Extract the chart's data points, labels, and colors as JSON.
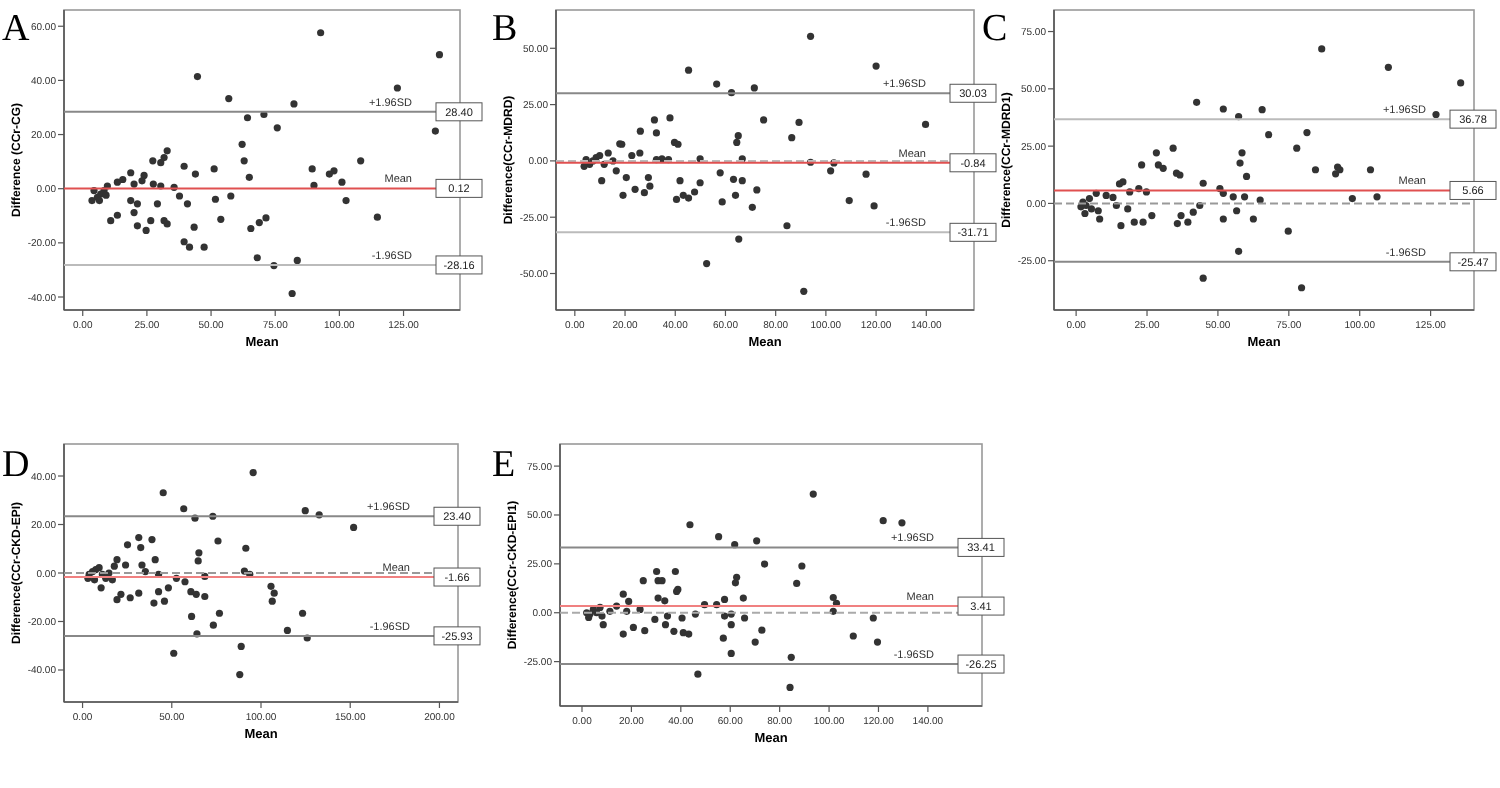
{
  "chart_data": [
    {
      "type": "scatter",
      "title": "A",
      "annotations": [
        {
          "text": "28.40",
          "y": 28.4
        },
        {
          "text": "0.12",
          "y": 0.12
        },
        {
          "text": "-28.16",
          "y": -28.16
        }
      ],
      "xlabel": "Mean",
      "ylabel": "Difference (CCr-CG)",
      "marker": "circle",
      "xlim": [
        -7.3,
        147
      ],
      "ylim": [
        -44.8,
        66
      ],
      "xticks": [
        {
          "value": 0,
          "label": "0.00"
        },
        {
          "value": 25,
          "label": "25.00"
        },
        {
          "value": 50,
          "label": "50.00"
        },
        {
          "value": 75,
          "label": "75.00"
        },
        {
          "value": 100,
          "label": "100.00"
        },
        {
          "value": 125,
          "label": "125.00"
        }
      ],
      "yticks": [
        {
          "value": -40,
          "label": "-40.00"
        },
        {
          "value": -20,
          "label": "-20.00"
        },
        {
          "value": 0,
          "label": "0.00"
        },
        {
          "value": 20,
          "label": "20.00"
        },
        {
          "value": 40,
          "label": "40.00"
        },
        {
          "value": 60,
          "label": "60.00"
        }
      ],
      "ref_lines": [
        {
          "axis": "y",
          "value": 28.4,
          "label": "+1.96SD",
          "color": "#888888",
          "line_style": "solid"
        },
        {
          "axis": "y",
          "value": 0.12,
          "label": "Mean",
          "color": "#e05050",
          "line_style": "solid"
        },
        {
          "axis": "y",
          "value": -28.16,
          "label": "-1.96SD",
          "color": "#bbbbbb",
          "line_style": "solid"
        }
      ],
      "series": [
        {
          "color": "#333333",
          "x": [
            92.7,
            139,
            122.6,
            44.7,
            56.9,
            82.3,
            137.4,
            64.2,
            70.6,
            75.8,
            62.1,
            62.9,
            64.9,
            51.2,
            32.9,
            30.4,
            27.3,
            31.7,
            39.5,
            43.9,
            108.3,
            97.9,
            96.1,
            89.4,
            101,
            90.1,
            102.6,
            114.8,
            57.7,
            51.7,
            53.8,
            65.5,
            68.8,
            71.4,
            68,
            74.5,
            83.6,
            81.6,
            39.5,
            41.6,
            47.3,
            43.4,
            40.8,
            37.7,
            32.9,
            31.7,
            26.5,
            29.1,
            24.7,
            21.3,
            21.3,
            20,
            18.7,
            13.5,
            10.9,
            20,
            18.7,
            23.9,
            23.1,
            13.5,
            15.6,
            9.6,
            8.3,
            7,
            5.7,
            4.4,
            3.6,
            6.5,
            9.1,
            35.6,
            30.4,
            27.5
          ],
          "values": [
            57.6,
            49.5,
            37.2,
            41.4,
            33.3,
            31.3,
            21.3,
            26.2,
            27.4,
            22.5,
            16.4,
            10.3,
            4.2,
            7.3,
            14,
            9.6,
            10.3,
            11.5,
            8.3,
            5.4,
            10.3,
            6.6,
            5.4,
            7.3,
            2.4,
            1.2,
            -4.4,
            -10.5,
            -2.7,
            -3.9,
            -11.3,
            -14.7,
            -12.5,
            -10.8,
            -25.5,
            -28.4,
            -26.5,
            -38.7,
            -19.6,
            -21.6,
            -21.6,
            -14.2,
            -5.6,
            -2.7,
            -13,
            -11.8,
            -11.8,
            -5.6,
            -15.4,
            -13.7,
            -5.6,
            -8.8,
            -4.4,
            -9.8,
            -11.8,
            1.7,
            5.9,
            4.9,
            2.9,
            2.4,
            3.4,
            1,
            -0.7,
            -2,
            -3.2,
            -0.7,
            -4.4,
            -4.4,
            -2.4,
            0.5,
            1,
            1.7
          ]
        }
      ]
    },
    {
      "type": "scatter",
      "title": "B",
      "annotations": [
        {
          "text": "30.03",
          "y": 30.03
        },
        {
          "text": "-0.84",
          "y": -0.84
        },
        {
          "text": "-31.71",
          "y": -31.71
        }
      ],
      "xlabel": "Mean",
      "ylabel": "Difference(CCr-MDRD)",
      "marker": "circle",
      "xlim": [
        -7.5,
        159
      ],
      "ylim": [
        -66.2,
        67
      ],
      "xticks": [
        {
          "value": 0,
          "label": "0.00"
        },
        {
          "value": 20,
          "label": "20.00"
        },
        {
          "value": 40,
          "label": "40.00"
        },
        {
          "value": 60,
          "label": "60.00"
        },
        {
          "value": 80,
          "label": "80.00"
        },
        {
          "value": 100,
          "label": "100.00"
        },
        {
          "value": 120,
          "label": "120.00"
        },
        {
          "value": 140,
          "label": "140.00"
        }
      ],
      "yticks": [
        {
          "value": -50,
          "label": "-50.00"
        },
        {
          "value": -25,
          "label": "-25.00"
        },
        {
          "value": 0,
          "label": "0.00"
        },
        {
          "value": 25,
          "label": "25.00"
        },
        {
          "value": 50,
          "label": "50.00"
        }
      ],
      "ref_lines": [
        {
          "axis": "y",
          "value": 30.03,
          "label": "+1.96SD",
          "color": "#888888",
          "line_style": "solid"
        },
        {
          "axis": "y",
          "value": 0,
          "color": "#bbbbbb",
          "line_style": "dashed"
        },
        {
          "axis": "y",
          "value": -0.84,
          "label": "Mean",
          "color": "#e05050",
          "line_style": "solid"
        },
        {
          "axis": "y",
          "value": -31.71,
          "label": "-1.96SD",
          "color": "#bbbbbb",
          "line_style": "solid"
        }
      ],
      "series": [
        {
          "color": "#333333",
          "x": [
            93.9,
            120,
            45.3,
            56.5,
            62.4,
            71.5,
            139.7,
            75.2,
            89.3,
            86.4,
            65.1,
            64.5,
            37.9,
            31.7,
            32.5,
            26.1,
            39.7,
            41.1,
            17.9,
            18.7,
            22.7,
            25.9,
            34.7,
            49.9,
            66.7,
            93.9,
            103.2,
            101.9,
            116,
            41.9,
            43.2,
            40.5,
            45.3,
            47.7,
            49.9,
            58.7,
            57.9,
            63.2,
            64,
            66.7,
            72.5,
            70.7,
            109.3,
            119.2,
            84.5,
            65.3,
            52.5,
            91.2,
            29.3,
            29.9,
            24,
            27.7,
            19.2,
            20.5,
            16.5,
            10.7,
            11.7,
            15.2,
            8.5,
            7.2,
            5.9,
            4.5,
            3.7,
            9.9,
            13.3,
            32.5,
            37.3
          ],
          "values": [
            55.3,
            42.1,
            40.3,
            34.1,
            30.3,
            32.4,
            16.2,
            18.2,
            17.1,
            10.3,
            11.2,
            8.2,
            19.1,
            18.2,
            12.4,
            13.2,
            8.2,
            7.4,
            7.6,
            7.4,
            2.4,
            3.5,
            0.9,
            0.9,
            0.9,
            -0.6,
            -0.9,
            -4.4,
            -5.9,
            -8.8,
            -15.3,
            -17.1,
            -16.5,
            -13.8,
            -9.7,
            -18.2,
            -5.3,
            -8.2,
            -15.3,
            -8.8,
            -12.9,
            -20.6,
            -17.6,
            -20,
            -28.8,
            -34.7,
            -45.6,
            -57.9,
            -7.4,
            -11.2,
            -12.6,
            -14.1,
            -15.3,
            -7.4,
            -4.4,
            -8.8,
            -1.5,
            0,
            1.5,
            0,
            -1.5,
            0.6,
            -2.4,
            2.4,
            3.5,
            0.6,
            0.6
          ]
        }
      ]
    },
    {
      "type": "scatter",
      "title": "C",
      "annotations": [
        {
          "text": "36.78",
          "y": 36.78
        },
        {
          "text": "5.66",
          "y": 5.66
        },
        {
          "text": "-25.47",
          "y": -25.47
        }
      ],
      "xlabel": "Mean",
      "ylabel": "Difference(CCr-MDRD1)",
      "marker": "circle",
      "xlim": [
        -7.8,
        140.3
      ],
      "ylim": [
        -46.5,
        84.4
      ],
      "xticks": [
        {
          "value": 0,
          "label": "0.00"
        },
        {
          "value": 25,
          "label": "25.00"
        },
        {
          "value": 50,
          "label": "50.00"
        },
        {
          "value": 75,
          "label": "75.00"
        },
        {
          "value": 100,
          "label": "100.00"
        },
        {
          "value": 125,
          "label": "125.00"
        }
      ],
      "yticks": [
        {
          "value": -25,
          "label": "-25.00"
        },
        {
          "value": 0,
          "label": "0.00"
        },
        {
          "value": 25,
          "label": "25.00"
        },
        {
          "value": 50,
          "label": "50.00"
        },
        {
          "value": 75,
          "label": "75.00"
        }
      ],
      "ref_lines": [
        {
          "axis": "y",
          "value": 36.78,
          "label": "+1.96SD",
          "color": "#bbbbbb",
          "line_style": "solid"
        },
        {
          "axis": "y",
          "value": 5.66,
          "label": "Mean",
          "color": "#e05050",
          "line_style": "solid"
        },
        {
          "axis": "y",
          "value": 0,
          "color": "#999999",
          "line_style": "dashed"
        },
        {
          "axis": "y",
          "value": -25.47,
          "label": "-1.96SD",
          "color": "#888888",
          "line_style": "solid"
        }
      ],
      "series": [
        {
          "color": "#333333",
          "x": [
            86.6,
            110.1,
            135.6,
            42.5,
            51.9,
            65.6,
            57.3,
            126.9,
            67.9,
            81.4,
            77.8,
            34.2,
            28.3,
            29,
            30.7,
            23.1,
            58.5,
            57.8,
            60.1,
            84.4,
            92.2,
            93,
            91.5,
            103.8,
            106.1,
            97.4,
            44.8,
            35.4,
            36.6,
            50.7,
            51.9,
            55.4,
            59.4,
            64.9,
            62.5,
            56.6,
            51.9,
            43.6,
            41.3,
            37,
            39.4,
            35.7,
            26.7,
            23.6,
            20.5,
            15.8,
            8.3,
            74.8,
            57.3,
            44.8,
            79.5,
            24.8,
            22.1,
            18.9,
            16.5,
            15.3,
            13,
            10.6,
            7.1,
            4.7,
            2.4,
            1.7,
            3.5,
            5.4,
            7.8,
            3.1,
            14.2,
            18.2
          ],
          "values": [
            67.4,
            59.4,
            52.6,
            44.1,
            41.2,
            40.9,
            37.9,
            38.8,
            30,
            30.9,
            24.1,
            24.1,
            22.1,
            16.8,
            15.3,
            16.8,
            22.1,
            17.6,
            11.8,
            14.7,
            15.9,
            14.7,
            12.9,
            14.7,
            2.9,
            2.1,
            8.8,
            13.2,
            12.4,
            6.5,
            4.4,
            2.9,
            2.9,
            1.5,
            -6.8,
            -3.2,
            -6.8,
            -0.9,
            -3.8,
            -5.3,
            -8.2,
            -8.8,
            -5.3,
            -8.2,
            -8.2,
            -9.7,
            -6.8,
            -12.1,
            -20.9,
            -32.6,
            -36.8,
            5,
            6.5,
            5,
            9.4,
            8.5,
            2.6,
            3.5,
            4.4,
            2.1,
            0.6,
            -1.5,
            -0.9,
            -2.4,
            -3.2,
            -4.4,
            -0.9,
            -2.4
          ]
        }
      ]
    },
    {
      "type": "scatter",
      "title": "D",
      "annotations": [
        {
          "text": "23.40",
          "y": 23.4
        },
        {
          "text": "-1.66",
          "y": -1.66
        },
        {
          "text": "-25.93",
          "y": -25.93
        }
      ],
      "xlabel": "Mean",
      "ylabel": "Difference(CCr-CKD-EPI)",
      "marker": "circle",
      "xlim": [
        -10.4,
        210.4
      ],
      "ylim": [
        -53.2,
        53.2
      ],
      "xticks": [
        {
          "value": 0,
          "label": "0.00"
        },
        {
          "value": 50,
          "label": "50.00"
        },
        {
          "value": 100,
          "label": "100.00"
        },
        {
          "value": 150,
          "label": "150.00"
        },
        {
          "value": 200,
          "label": "200.00"
        }
      ],
      "yticks": [
        {
          "value": -40,
          "label": "-40.00"
        },
        {
          "value": -20,
          "label": "-20.00"
        },
        {
          "value": 0,
          "label": "0.00"
        },
        {
          "value": 20,
          "label": "20.00"
        },
        {
          "value": 40,
          "label": "40.00"
        }
      ],
      "ref_lines": [
        {
          "axis": "y",
          "value": 23.4,
          "label": "+1.96SD",
          "color": "#888888",
          "line_style": "solid"
        },
        {
          "axis": "y",
          "value": 0,
          "color": "#999999",
          "line_style": "dashed"
        },
        {
          "axis": "y",
          "value": -1.66,
          "label": "Mean",
          "color": "#f08080",
          "line_style": "solid"
        },
        {
          "axis": "y",
          "value": -25.93,
          "label": "-1.96SD",
          "color": "#888888",
          "line_style": "solid"
        }
      ],
      "series": [
        {
          "color": "#333333",
          "x": [
            95.6,
            45.2,
            56.7,
            124.8,
            132.6,
            63,
            73,
            151.9,
            75.9,
            91.5,
            65.2,
            64.8,
            25.2,
            31.5,
            32.6,
            38.9,
            40.7,
            19.3,
            17.8,
            24.1,
            33.3,
            35.2,
            90.7,
            93.7,
            68.5,
            52.6,
            57.4,
            42.6,
            105.6,
            107.4,
            106.3,
            48.1,
            42.6,
            60.7,
            63.7,
            68.5,
            45.9,
            40,
            31.5,
            26.7,
            21.5,
            19.3,
            10.4,
            76.7,
            61.1,
            73.3,
            123.3,
            114.8,
            125.9,
            64.1,
            88.9,
            51.1,
            88.1,
            3.7,
            5.6,
            7.4,
            9.3,
            11.1,
            3,
            6.7,
            13,
            14.8,
            16.7
          ],
          "values": [
            41.4,
            33.1,
            26.5,
            25.7,
            24,
            22.6,
            23.4,
            18.8,
            13.2,
            10.2,
            8.3,
            5,
            11.6,
            14.6,
            10.5,
            13.8,
            5.5,
            5.5,
            2.8,
            3.3,
            3.3,
            0.6,
            0.8,
            -0.6,
            -1.4,
            -2.2,
            -3.6,
            -0.6,
            -5.5,
            -8.3,
            -11.6,
            -6.1,
            -7.7,
            -7.7,
            -8.8,
            -9.7,
            -11.6,
            -12.4,
            -8.3,
            -10.2,
            -8.8,
            -11,
            -6.1,
            -16.6,
            -17.9,
            -21.5,
            -16.6,
            -23.7,
            -26.8,
            -25.1,
            -30.3,
            -33.1,
            -41.9,
            -0.6,
            0.6,
            1.4,
            2.2,
            -0.6,
            -2.2,
            -2.8,
            -2.2,
            0,
            -2.8
          ]
        }
      ]
    },
    {
      "type": "scatter",
      "title": "E",
      "annotations": [
        {
          "text": "33.41",
          "y": 33.41
        },
        {
          "text": "3.41",
          "y": 3.41
        },
        {
          "text": "-26.25",
          "y": -26.25
        }
      ],
      "xlabel": "Mean",
      "ylabel": "Difference(CCr-CKD-EPI1)",
      "marker": "circle",
      "xlim": [
        -8.9,
        161.9
      ],
      "ylim": [
        -47.7,
        86.3
      ],
      "xticks": [
        {
          "value": 0,
          "label": "0.00"
        },
        {
          "value": 20,
          "label": "20.00"
        },
        {
          "value": 40,
          "label": "40.00"
        },
        {
          "value": 60,
          "label": "60.00"
        },
        {
          "value": 80,
          "label": "80.00"
        },
        {
          "value": 100,
          "label": "100.00"
        },
        {
          "value": 120,
          "label": "120.00"
        },
        {
          "value": 140,
          "label": "140.00"
        }
      ],
      "yticks": [
        {
          "value": -25,
          "label": "-25.00"
        },
        {
          "value": 0,
          "label": "0.00"
        },
        {
          "value": 25,
          "label": "25.00"
        },
        {
          "value": 50,
          "label": "50.00"
        },
        {
          "value": 75,
          "label": "75.00"
        }
      ],
      "ref_lines": [
        {
          "axis": "y",
          "value": 33.41,
          "label": "+1.96SD",
          "color": "#888888",
          "line_style": "solid"
        },
        {
          "axis": "y",
          "value": 3.41,
          "label": "Mean",
          "color": "#f08080",
          "line_style": "solid"
        },
        {
          "axis": "y",
          "value": 0,
          "color": "#aaaaaa",
          "line_style": "dashed"
        },
        {
          "axis": "y",
          "value": -26.25,
          "label": "-1.96SD",
          "color": "#888888",
          "line_style": "solid"
        }
      ],
      "series": [
        {
          "color": "#333333",
          "x": [
            93.6,
            121.9,
            129.5,
            43.7,
            55.3,
            70.7,
            61.8,
            73.9,
            89,
            86.9,
            62.6,
            62.1,
            30.2,
            37.8,
            24.8,
            30.8,
            32.4,
            38.8,
            38.3,
            30.8,
            33.5,
            57.7,
            65.3,
            101.7,
            103,
            101.7,
            49.6,
            54.5,
            45.9,
            40.5,
            57.7,
            60.4,
            65.8,
            60.4,
            72.8,
            57.2,
            41,
            43.2,
            37.2,
            33.8,
            34.6,
            29.5,
            25.4,
            16.7,
            20.8,
            70.1,
            60.4,
            84.7,
            84.2,
            46.9,
            109.8,
            117.9,
            119.6,
            14,
            16.7,
            18.9,
            23.5,
            18.1,
            11.3,
            7.3,
            5.9,
            4.6,
            3.2,
            1.9,
            2.7,
            8.6,
            8.1
          ],
          "values": [
            60.7,
            47.1,
            46,
            45,
            38.9,
            36.8,
            34.8,
            24.9,
            23.9,
            15,
            18.1,
            15.3,
            21.1,
            21.1,
            16.4,
            16.4,
            16.4,
            11.9,
            10.9,
            7.5,
            6.1,
            6.8,
            7.5,
            7.8,
            4.8,
            0.7,
            4.1,
            4.1,
            -0.7,
            -2.7,
            -1.7,
            -0.7,
            -2.7,
            -6.1,
            -8.9,
            -13,
            -10.2,
            -10.9,
            -9.5,
            -6.1,
            -1.7,
            -3.4,
            -9.2,
            -10.9,
            -7.5,
            -15,
            -20.8,
            -22.8,
            -38.2,
            -31.4,
            -11.9,
            -2.7,
            -15,
            3.4,
            9.5,
            5.8,
            1.7,
            0.7,
            0.7,
            2.7,
            0,
            1.7,
            -0.7,
            0,
            -2.4,
            -6.1,
            -1.7
          ]
        }
      ]
    }
  ]
}
